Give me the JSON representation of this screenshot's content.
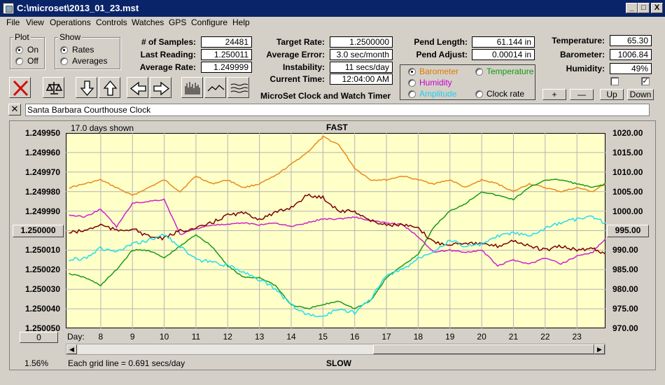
{
  "window": {
    "title": "C:\\microset\\2013_01_23.mst",
    "buttons": [
      "_",
      "□",
      "X"
    ]
  },
  "menu": [
    "File",
    "View",
    "Operations",
    "Controls",
    "Watches",
    "GPS",
    "Configure",
    "Help"
  ],
  "plot_group": {
    "title": "Plot",
    "options": [
      "On",
      "Off"
    ],
    "selected": "On"
  },
  "show_group": {
    "title": "Show",
    "options": [
      "Rates",
      "Averages"
    ],
    "selected": "Rates"
  },
  "stats_left": [
    {
      "label": "# of Samples:",
      "value": "24481"
    },
    {
      "label": "Last Reading:",
      "value": "1.250011"
    },
    {
      "label": "Average Rate:",
      "value": "1.249999"
    }
  ],
  "stats_mid": [
    {
      "label": "Target Rate:",
      "value": "1.2500000"
    },
    {
      "label": "Average Error:",
      "value": "3.0 sec/month"
    },
    {
      "label": "Instability:",
      "value": "11 secs/day"
    },
    {
      "label": "Current Time:",
      "value": "12:04:00 AM"
    }
  ],
  "app_title": "MicroSet Clock and Watch Timer",
  "pend": [
    {
      "label": "Pend Length:",
      "value": "61.144 in"
    },
    {
      "label": "Pend Adjust:",
      "value": "0.00014 in"
    }
  ],
  "env": [
    {
      "label": "Temperature:",
      "value": "65.30"
    },
    {
      "label": "Barometer:",
      "value": "1006.84"
    },
    {
      "label": "Humidity:",
      "value": "49%"
    }
  ],
  "sensor_options": [
    {
      "label": "Barometer",
      "color": "#e07b00",
      "selected": true
    },
    {
      "label": "Temperature",
      "color": "#119911",
      "selected": false
    },
    {
      "label": "Humidity",
      "color": "#cc00cc",
      "selected": false
    },
    {
      "label": "Clock rate",
      "color": "#000000",
      "selected": false
    },
    {
      "label": "Amplitude",
      "color": "#22ccee",
      "selected": false
    }
  ],
  "checkbox_states": [
    false,
    true
  ],
  "scale_buttons": [
    "+",
    "—",
    "Up",
    "Down"
  ],
  "toolbar_icons": [
    "delete-icon",
    "balance-icon",
    "arrow-down-icon",
    "arrow-up-icon",
    "arrow-left-icon",
    "arrow-right-icon",
    "bars-chart-icon",
    "line-chart-icon",
    "wave-chart-icon"
  ],
  "clock_name": "Santa Barbara Courthouse Clock",
  "chart": {
    "days_shown": "17.0 days shown",
    "top_label": "FAST",
    "bottom_label": "SLOW",
    "grid_note": "Each grid line = 0.691 secs/day",
    "day_label": "Day:",
    "left_button": "1.250000",
    "right_button": "995.00",
    "bottom_left_button": "0",
    "percent": "1.56%"
  },
  "chart_data": {
    "type": "line",
    "background": "#ffffc8",
    "grid": true,
    "x_ticks": [
      8,
      9,
      10,
      11,
      12,
      13,
      14,
      15,
      16,
      17,
      18,
      19,
      20,
      21,
      22,
      23
    ],
    "xlim": [
      6.9,
      23.9
    ],
    "y_left_ticks": [
      "1.249950",
      "1.249960",
      "1.249970",
      "1.249980",
      "1.249990",
      "1.250000",
      "1.250010",
      "1.250020",
      "1.250030",
      "1.250040",
      "1.250050"
    ],
    "y_left_lim": [
      1.24995,
      1.25005
    ],
    "y_right_ticks": [
      "1020.00",
      "1015.00",
      "1010.00",
      "1005.00",
      "1000.00",
      "995.00",
      "990.00",
      "985.00",
      "980.00",
      "975.00",
      "970.00"
    ],
    "y_right_lim": [
      970,
      1020
    ],
    "series": [
      {
        "name": "Barometer",
        "color": "#e88a1a",
        "axis": "right",
        "x": [
          7,
          7.5,
          8,
          8.5,
          9,
          9.5,
          10,
          10.5,
          11,
          11.5,
          12,
          12.5,
          13,
          13.5,
          14,
          14.5,
          15,
          15.5,
          16,
          16.5,
          17,
          17.5,
          18,
          18.5,
          19,
          19.5,
          20,
          20.5,
          21,
          21.5,
          22,
          22.5,
          23,
          23.5,
          23.9
        ],
        "y": [
          1006,
          1007,
          1008,
          1006,
          1004,
          1006,
          1008,
          1005,
          1009,
          1007,
          1008,
          1006,
          1007,
          1009,
          1012,
          1015,
          1019,
          1017,
          1011,
          1008,
          1008,
          1009,
          1008,
          1007,
          1008,
          1006,
          1008,
          1007,
          1005,
          1007,
          1006,
          1005,
          1006,
          1005,
          1007
        ]
      },
      {
        "name": "Temperature",
        "color": "#1a9a1a",
        "axis": "right",
        "x": [
          7,
          7.5,
          8,
          8.5,
          9,
          9.5,
          10,
          10.5,
          11,
          11.5,
          12,
          12.5,
          13,
          13.5,
          14,
          14.5,
          15,
          15.5,
          16,
          16.5,
          17,
          17.5,
          18,
          18.5,
          19,
          19.5,
          20,
          20.5,
          21,
          21.5,
          22,
          22.5,
          23,
          23.5,
          23.9
        ],
        "y": [
          984,
          983,
          981,
          985,
          990,
          990,
          988,
          991,
          994,
          991,
          986,
          983,
          983,
          981,
          976,
          975,
          976,
          977,
          975,
          977,
          983,
          986,
          989,
          996,
          1000,
          1002,
          1005,
          1004,
          1003,
          1006,
          1008,
          1008,
          1007,
          1006,
          1007
        ]
      },
      {
        "name": "Humidity",
        "color": "#cc22cc",
        "axis": "left",
        "x": [
          7,
          7.5,
          8,
          8.5,
          9,
          9.5,
          10,
          10.5,
          11,
          11.5,
          12,
          12.5,
          13,
          13.5,
          14,
          14.5,
          15,
          15.5,
          16,
          16.5,
          17,
          17.5,
          18,
          18.5,
          19,
          19.5,
          20,
          20.5,
          21,
          21.5,
          22,
          22.5,
          23,
          23.5,
          23.9
        ],
        "y": [
          1.249992,
          1.249993,
          1.249989,
          1.249998,
          1.249986,
          1.249985,
          1.249984,
          1.250002,
          1.249999,
          1.249997,
          1.249997,
          1.249996,
          1.249997,
          1.249996,
          1.249998,
          1.249996,
          1.249994,
          1.249994,
          1.249993,
          1.249995,
          1.249996,
          1.249997,
          1.250003,
          1.250011,
          1.25001,
          1.250011,
          1.25001,
          1.250018,
          1.250015,
          1.250017,
          1.250014,
          1.250017,
          1.250013,
          1.250011,
          1.250004
        ]
      },
      {
        "name": "Clock rate",
        "color": "#7a0000",
        "axis": "left",
        "x": [
          7,
          7.5,
          8,
          8.5,
          9,
          9.5,
          10,
          10.5,
          11,
          11.5,
          12,
          12.5,
          13,
          13.5,
          14,
          14.5,
          15,
          15.5,
          16,
          16.5,
          17,
          17.5,
          18,
          18.5,
          19,
          19.5,
          20,
          20.5,
          21,
          21.5,
          22,
          22.5,
          23,
          23.5,
          23.9
        ],
        "y": [
          1.250001,
          1.25,
          1.249997,
          1.25,
          1.249999,
          1.250003,
          1.250004,
          1.25,
          1.249999,
          1.249996,
          1.249992,
          1.249991,
          1.249994,
          1.249991,
          1.249988,
          1.249982,
          1.249983,
          1.24999,
          1.24999,
          1.249995,
          1.249997,
          1.249997,
          1.249999,
          1.250006,
          1.250007,
          1.250006,
          1.250007,
          1.250008,
          1.250005,
          1.250008,
          1.25001,
          1.250008,
          1.25001,
          1.250009,
          1.250012
        ]
      },
      {
        "name": "Amplitude",
        "color": "#22ddee",
        "axis": "left",
        "x": [
          7,
          7.5,
          8,
          8.5,
          9,
          9.5,
          10,
          10.5,
          11,
          11.5,
          12,
          12.5,
          13,
          13.5,
          14,
          14.5,
          15,
          15.5,
          16,
          16.5,
          17,
          17.5,
          18,
          18.5,
          19,
          19.5,
          20,
          20.5,
          21,
          21.5,
          22,
          22.5,
          23,
          23.5,
          23.9
        ],
        "y": [
          1.250015,
          1.250014,
          1.250009,
          1.250011,
          1.250007,
          1.250005,
          1.250002,
          1.250008,
          1.250015,
          1.250016,
          1.250018,
          1.250021,
          1.250025,
          1.25003,
          1.250038,
          1.250043,
          1.250044,
          1.25004,
          1.250042,
          1.250035,
          1.250023,
          1.25002,
          1.250014,
          1.25001,
          1.250005,
          1.250008,
          1.250007,
          1.250003,
          1.250001,
          1.250003,
          1.249999,
          1.249996,
          1.249994,
          1.249993,
          1.249996
        ]
      }
    ]
  }
}
